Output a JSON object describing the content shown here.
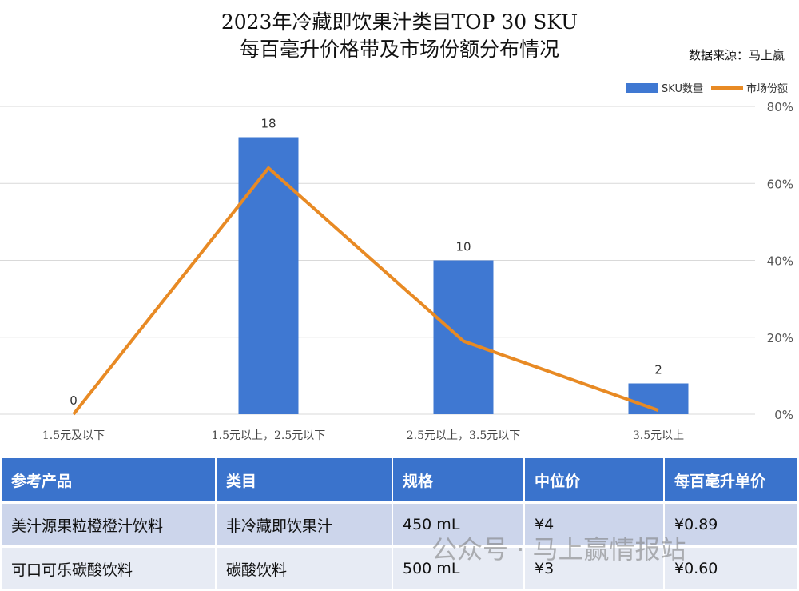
{
  "chart_data": {
    "type": "bar+line",
    "title": "2023年冷藏即饮果汁类目TOP 30 SKU",
    "subtitle": "每百毫升价格带及市场份额分布情况",
    "source": "数据来源：马上赢",
    "categories": [
      "1.5元及以下",
      "1.5元以上，2.5元以下",
      "2.5元以上，3.5元以下",
      "3.5元以上"
    ],
    "series": [
      {
        "name": "SKU数量",
        "type": "bar",
        "axis": "left",
        "values": [
          0,
          18,
          10,
          2
        ],
        "color": "#3f78d2"
      },
      {
        "name": "市场份额",
        "type": "line",
        "axis": "right",
        "values": [
          0,
          64,
          19,
          1
        ],
        "color": "#e88a24"
      }
    ],
    "left_ylim": [
      0,
      20
    ],
    "right_ylim": [
      0,
      80
    ],
    "right_ticks": [
      "0%",
      "20%",
      "40%",
      "60%",
      "80%"
    ],
    "grid": true,
    "legend": "top-right"
  },
  "table": {
    "headers": [
      "参考产品",
      "类目",
      "规格",
      "中位价",
      "每百毫升单价"
    ],
    "rows": [
      [
        "美汁源果粒橙橙汁饮料",
        "非冷藏即饮果汁",
        "450 mL",
        "¥4",
        "¥0.89"
      ],
      [
        "可口可乐碳酸饮料",
        "碳酸饮料",
        "500 mL",
        "¥3",
        "¥0.60"
      ]
    ]
  },
  "watermark": "公众号 · 马上赢情报站"
}
